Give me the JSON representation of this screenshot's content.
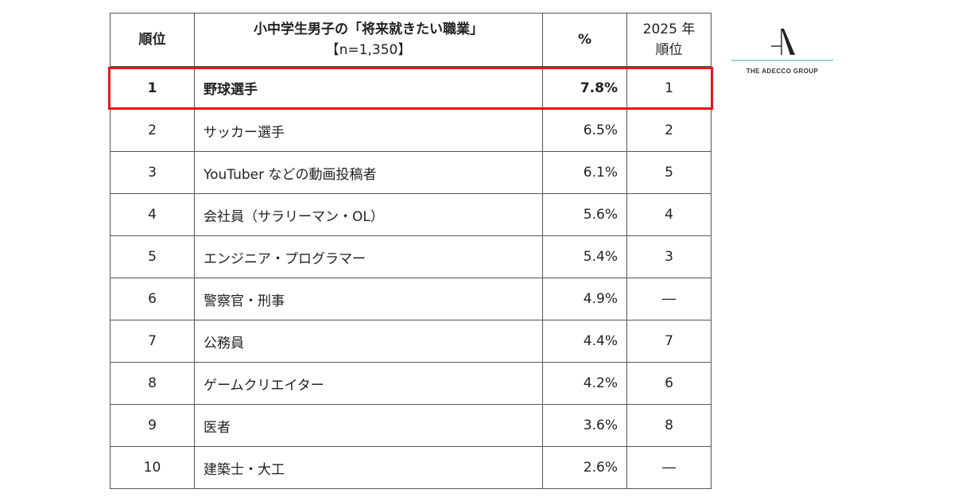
{
  "header": {
    "rank": "順位",
    "title": "小中学生男子の「将来就きたい職業」",
    "sample": "【n=1,350】",
    "percent": "%",
    "prev_year": "2025 年",
    "prev_rank": "順位"
  },
  "rows": [
    {
      "rank": "1",
      "job": "野球選手",
      "pct": "7.8%",
      "prev": "1"
    },
    {
      "rank": "2",
      "job": "サッカー選手",
      "pct": "6.5%",
      "prev": "2"
    },
    {
      "rank": "3",
      "job": "YouTuber などの動画投稿者",
      "pct": "6.1%",
      "prev": "5"
    },
    {
      "rank": "4",
      "job": "会社員（サラリーマン・OL）",
      "pct": "5.6%",
      "prev": "4"
    },
    {
      "rank": "5",
      "job": "エンジニア・プログラマー",
      "pct": "5.4%",
      "prev": "3"
    },
    {
      "rank": "6",
      "job": "警察官・刑事",
      "pct": "4.9%",
      "prev": "―"
    },
    {
      "rank": "7",
      "job": "公務員",
      "pct": "4.4%",
      "prev": "7"
    },
    {
      "rank": "8",
      "job": "ゲームクリエイター",
      "pct": "4.2%",
      "prev": "6"
    },
    {
      "rank": "9",
      "job": "医者",
      "pct": "3.6%",
      "prev": "8"
    },
    {
      "rank": "10",
      "job": "建築士・大工",
      "pct": "2.6%",
      "prev": "―"
    }
  ],
  "highlight_color": "#e8141c",
  "logo": {
    "text": "THE ADECCO GROUP",
    "line_color": "#9fcfd6"
  },
  "chart_data": {
    "type": "table",
    "columns": [
      "順位",
      "小中学生男子の「将来就きたい職業」【n=1,350】",
      "%",
      "2025 年 順位"
    ],
    "categories": [
      "野球選手",
      "サッカー選手",
      "YouTuber などの動画投稿者",
      "会社員（サラリーマン・OL）",
      "エンジニア・プログラマー",
      "警察官・刑事",
      "公務員",
      "ゲームクリエイター",
      "医者",
      "建築士・大工"
    ],
    "values": [
      7.8,
      6.5,
      6.1,
      5.6,
      5.4,
      4.9,
      4.4,
      4.2,
      3.6,
      2.6
    ],
    "ranks": [
      1,
      2,
      3,
      4,
      5,
      6,
      7,
      8,
      9,
      10
    ],
    "prev_ranks": [
      "1",
      "2",
      "5",
      "4",
      "3",
      "―",
      "7",
      "6",
      "8",
      "―"
    ],
    "highlighted_rank": 1
  }
}
